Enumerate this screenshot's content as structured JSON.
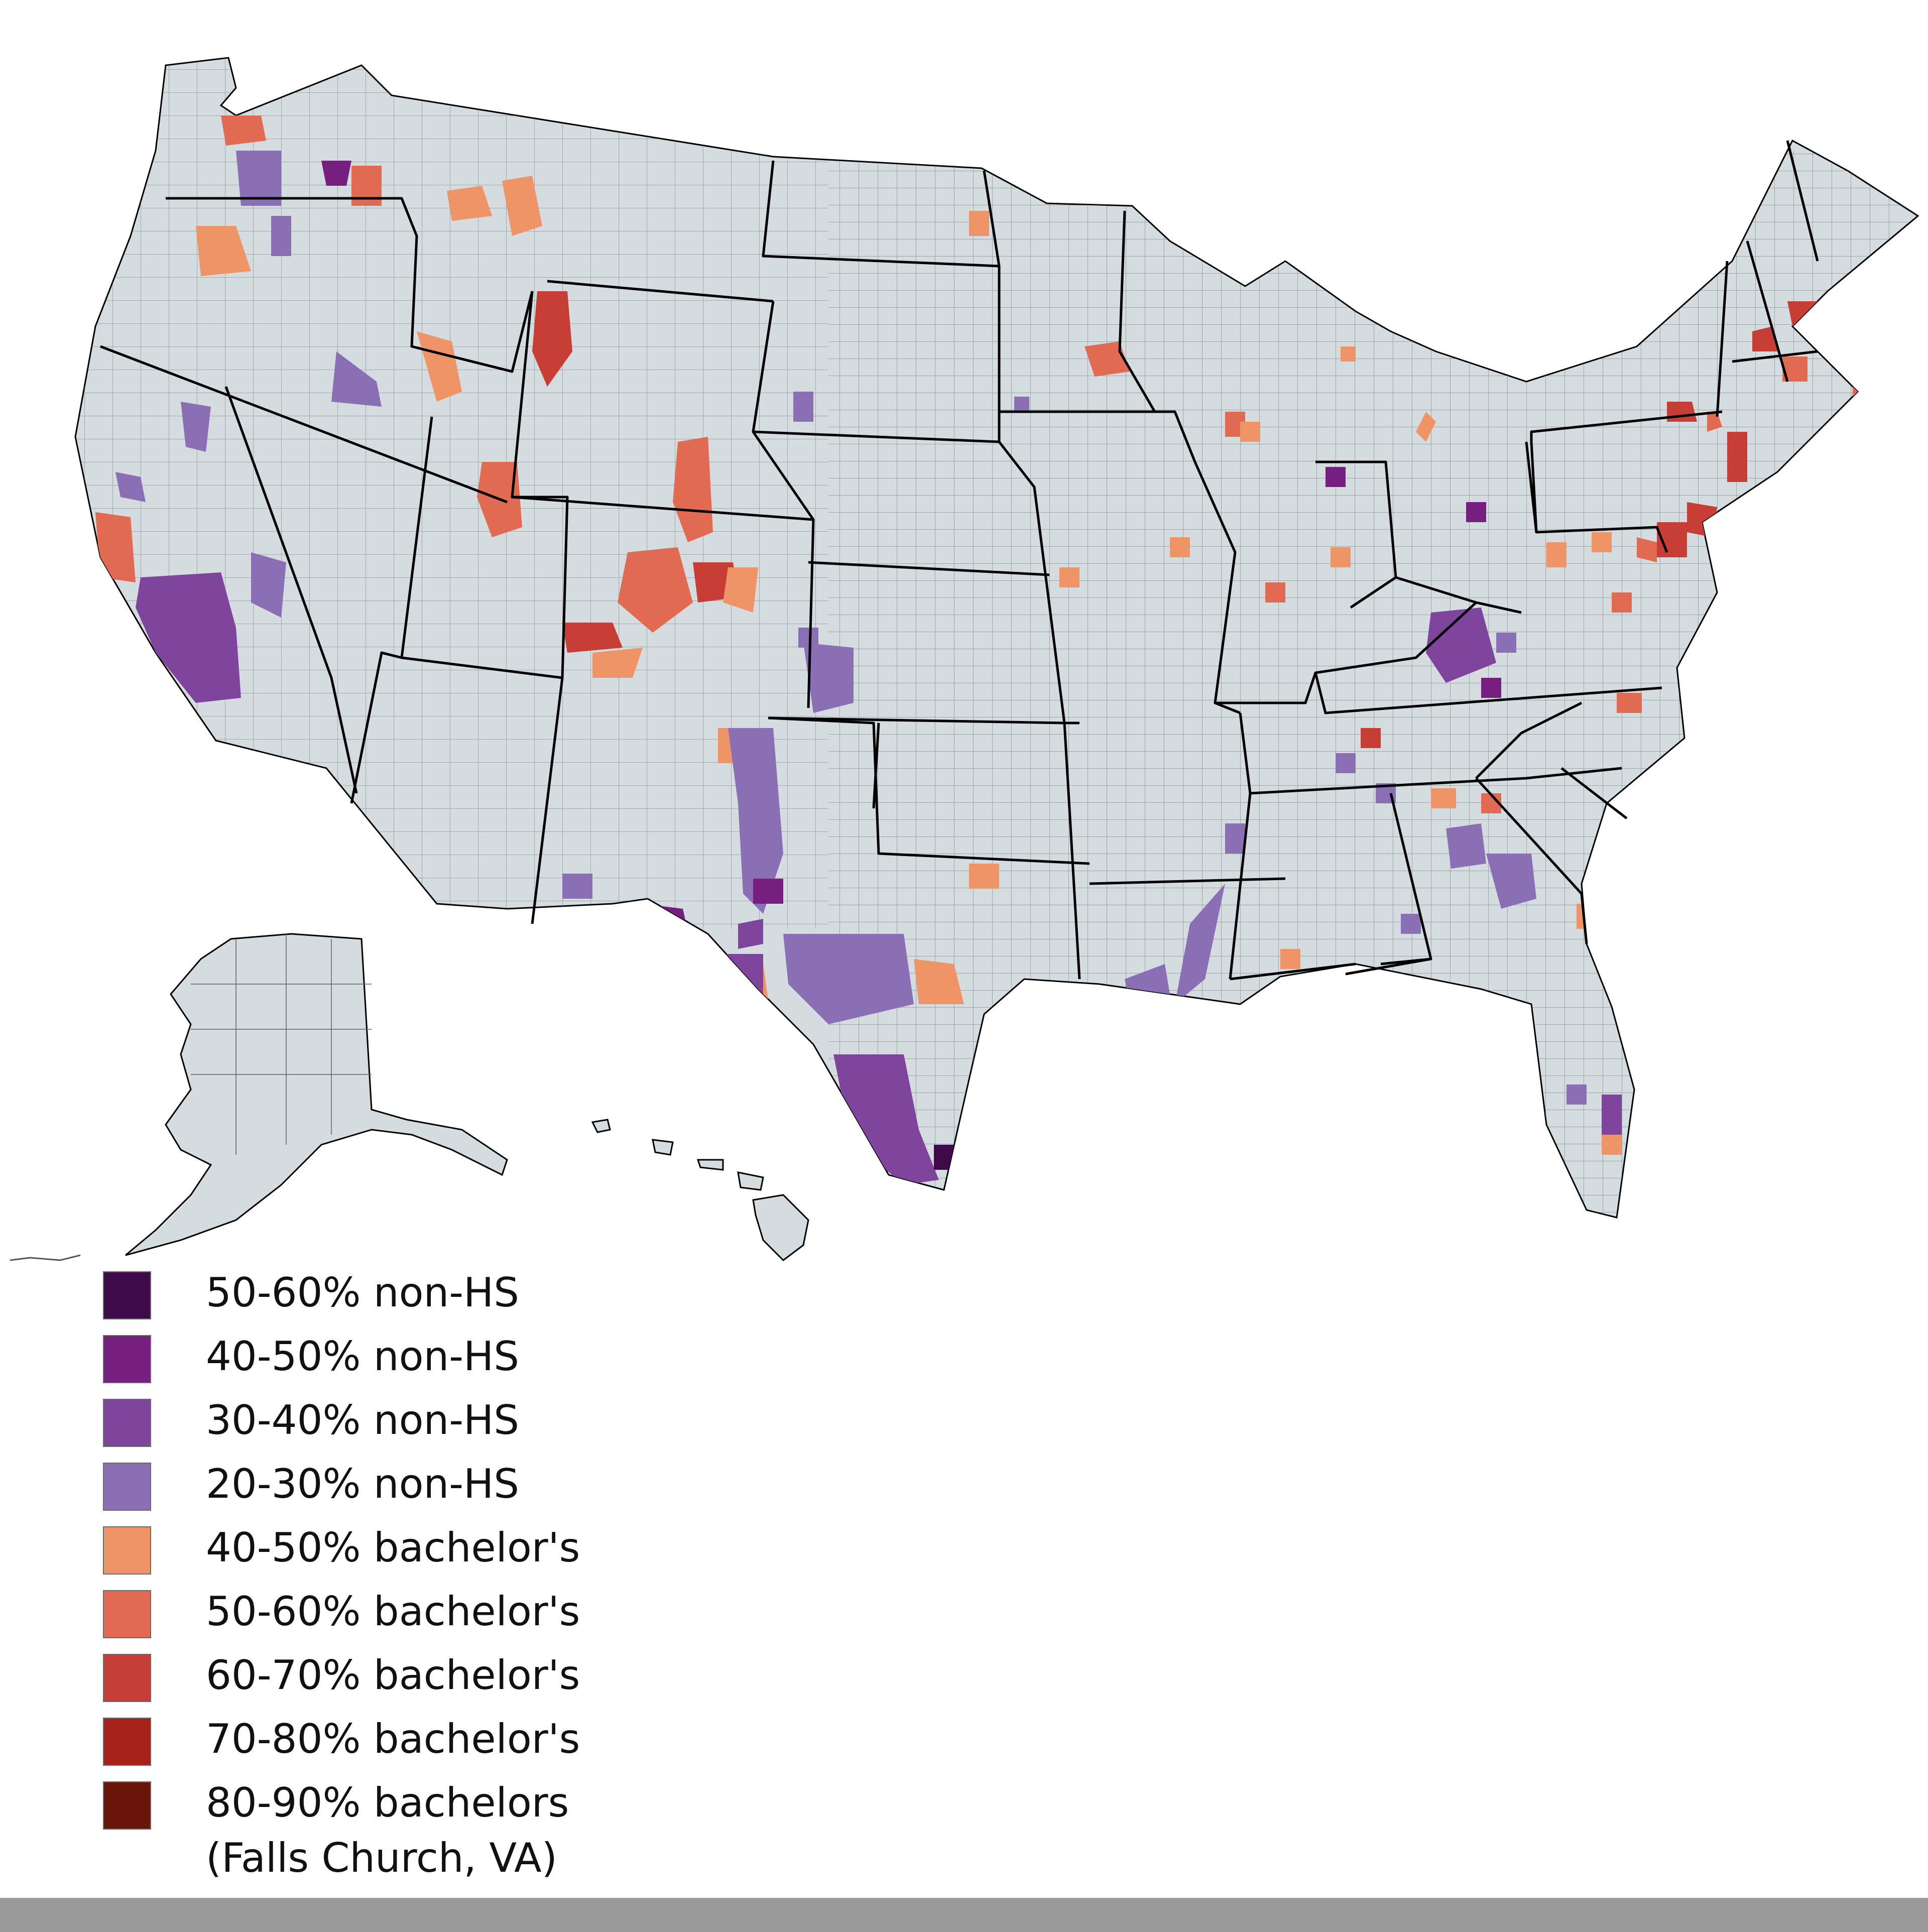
{
  "colors": {
    "land": "#d5dcdf",
    "county_stroke": "#555b5f",
    "state_stroke": "#000000",
    "non_hs_50_60": "#3f0a4a",
    "non_hs_40_50": "#761f80",
    "non_hs_30_40": "#7f459c",
    "non_hs_20_30": "#8a6fb5",
    "bach_40_50": "#ef9467",
    "bach_50_60": "#e06a52",
    "bach_60_70": "#c73e36",
    "bach_70_80": "#a52219",
    "bach_80_90": "#6b1409"
  },
  "legend": {
    "items": [
      {
        "label": "50-60% non-HS",
        "color": "#3f0a4a"
      },
      {
        "label": "40-50% non-HS",
        "color": "#761f80"
      },
      {
        "label": "30-40% non-HS",
        "color": "#7f459c"
      },
      {
        "label": "20-30% non-HS",
        "color": "#8a6fb5"
      },
      {
        "label": "40-50% bachelor's",
        "color": "#ef9467"
      },
      {
        "label": "50-60% bachelor's",
        "color": "#e06a52"
      },
      {
        "label": "60-70% bachelor's",
        "color": "#c73e36"
      },
      {
        "label": "70-80% bachelor's",
        "color": "#a52219"
      },
      {
        "label": "80-90% bachelors",
        "color": "#6b1409",
        "sub": "(Falls Church, VA)"
      }
    ]
  },
  "footer": {
    "text": ""
  }
}
